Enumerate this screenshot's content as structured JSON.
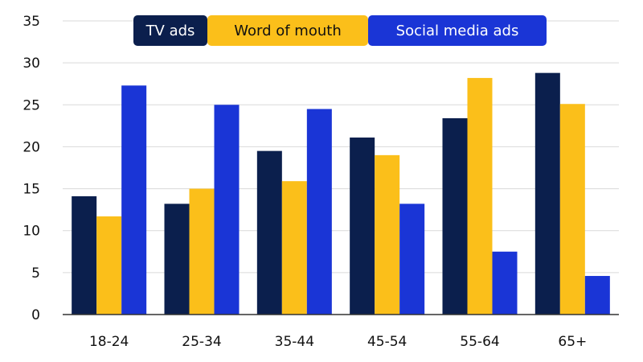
{
  "chart_data": {
    "type": "bar",
    "title": "",
    "xlabel": "",
    "ylabel": "",
    "categories": [
      "18-24",
      "25-34",
      "35-44",
      "45-54",
      "55-64",
      "65+"
    ],
    "ylim": [
      0,
      35
    ],
    "yticks": [
      0,
      5,
      10,
      15,
      20,
      25,
      30,
      35
    ],
    "grid": true,
    "legend_position": "top-center",
    "series": [
      {
        "name": "TV ads",
        "color": "#0b1f4d",
        "text_color": "#ffffff",
        "values": [
          14.1,
          13.2,
          19.5,
          21.1,
          23.4,
          28.8
        ]
      },
      {
        "name": "Word of mouth",
        "color": "#fbbf1a",
        "text_color": "#111111",
        "values": [
          11.7,
          15.0,
          15.9,
          19.0,
          28.2,
          25.1
        ]
      },
      {
        "name": "Social media ads",
        "color": "#1a35d6",
        "text_color": "#ffffff",
        "values": [
          27.3,
          25.0,
          24.5,
          13.2,
          7.5,
          4.6
        ]
      }
    ]
  }
}
